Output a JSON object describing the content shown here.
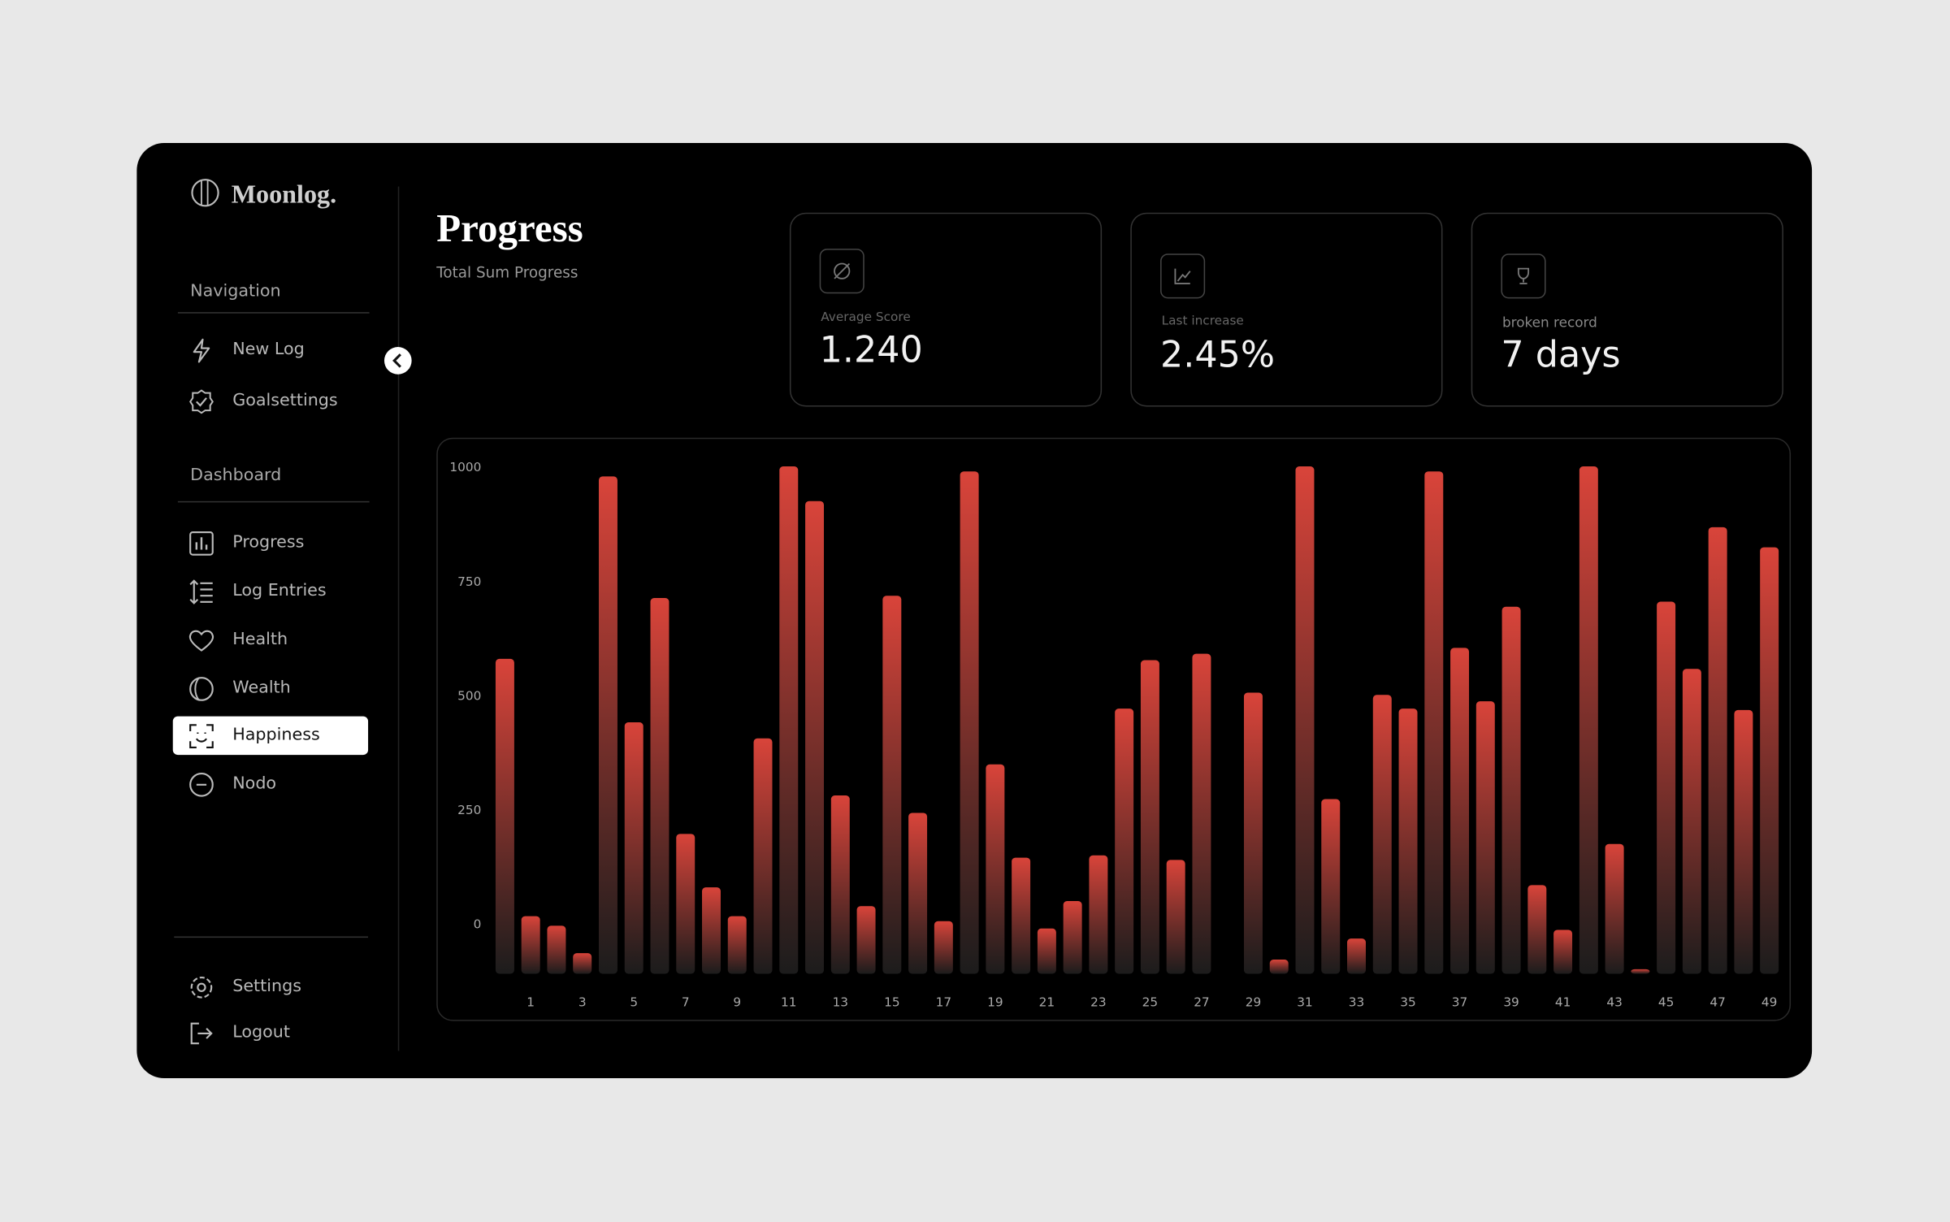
{
  "brand": "Moonlog.",
  "sidebar": {
    "sections": [
      {
        "title": "Navigation",
        "items": [
          "New Log",
          "Goalsettings"
        ]
      },
      {
        "title": "Dashboard",
        "items": [
          "Progress",
          "Log Entries",
          "Health",
          "Wealth",
          "Happiness",
          "Nodo"
        ]
      }
    ],
    "active": {
      "section": 1,
      "item": 4
    },
    "footer": [
      "Settings",
      "Logout"
    ]
  },
  "header": {
    "title": "Progress",
    "subtitle": "Total Sum Progress"
  },
  "stats": [
    {
      "label": "Average Score",
      "value": "1.240"
    },
    {
      "label": "Last increase",
      "value": "2.45%"
    },
    {
      "label": "broken record",
      "value": "7 days"
    }
  ],
  "chart_data": {
    "type": "bar",
    "color": "#d9443a",
    "categories": [
      null,
      "1",
      null,
      "3",
      null,
      "5",
      null,
      "7",
      null,
      "9",
      null,
      "11",
      null,
      "13",
      null,
      "15",
      null,
      "17",
      null,
      "19",
      null,
      "21",
      null,
      "23",
      null,
      "25",
      null,
      "27",
      null,
      "29",
      null,
      "31",
      null,
      "33",
      null,
      "35",
      null,
      "37",
      null,
      "39",
      null,
      "41",
      null,
      "43",
      null,
      "45",
      null,
      "47",
      null,
      "49"
    ],
    "values": [
      579,
      16,
      -5,
      -65,
      978,
      440,
      712,
      196,
      79,
      16,
      405,
      1000,
      924,
      280,
      38,
      717,
      242,
      5,
      989,
      348,
      144,
      -11,
      49,
      149,
      470,
      576,
      139,
      590,
      null,
      505,
      -79,
      1000,
      272,
      -33,
      500,
      470,
      989,
      603,
      486,
      693,
      84,
      -14,
      1000,
      174,
      -100,
      704,
      557,
      867,
      467,
      823
    ],
    "ylim": [
      -110,
      1030
    ],
    "yticks": [
      0,
      250,
      500,
      750,
      1000
    ],
    "grid": false
  }
}
